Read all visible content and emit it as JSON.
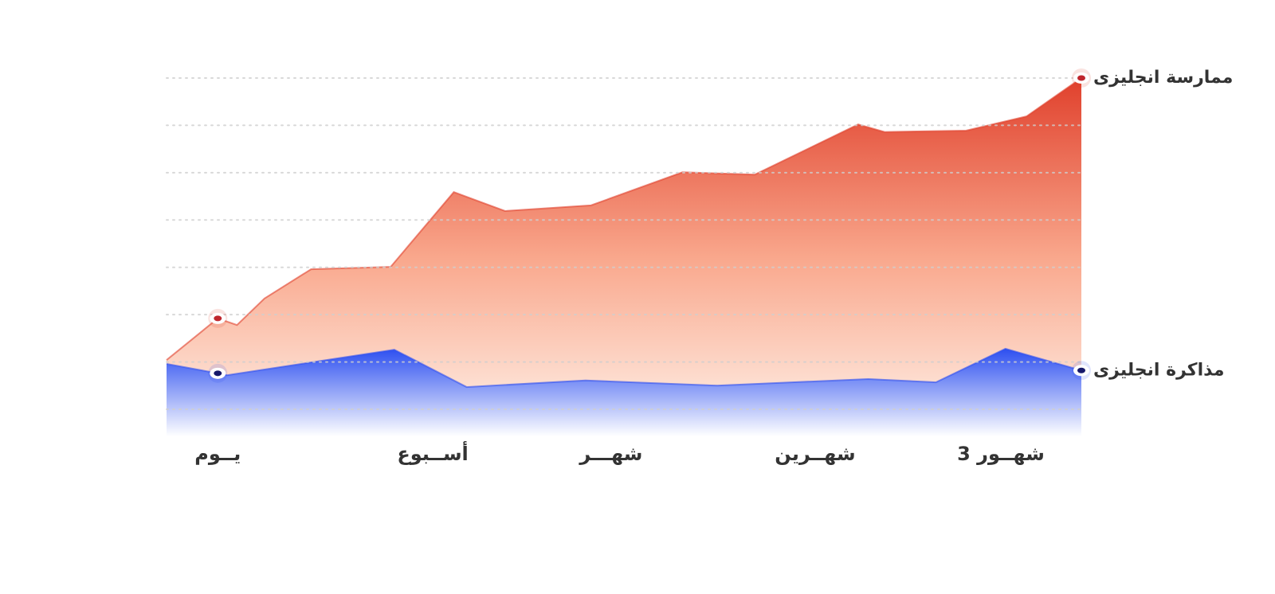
{
  "chart_data": {
    "type": "area",
    "xlim": [
      0,
      100
    ],
    "xticks": [
      {
        "value": 5.6,
        "label": "يــوم"
      },
      {
        "value": 29.1,
        "label": "أســبوع"
      },
      {
        "value": 48.6,
        "label": "شهـــر"
      },
      {
        "value": 70.9,
        "label": "شهــرين"
      },
      {
        "value": 91.2,
        "label": "3 شهــور"
      }
    ],
    "ylim": [
      0,
      7
    ],
    "yticks": [
      0,
      1,
      2,
      3,
      4,
      5,
      6,
      7
    ],
    "grid": true,
    "series": [
      {
        "name": "ممارسة انجليزى",
        "color": "#e0402c",
        "x": [
          0,
          5.6,
          7.7,
          10.7,
          15.8,
          24.5,
          31.4,
          37.0,
          46.4,
          56.4,
          64.3,
          75.6,
          78.5,
          87.4,
          94.0,
          100
        ],
        "values": [
          1.04,
          1.92,
          1.78,
          2.34,
          2.96,
          3.01,
          4.59,
          4.19,
          4.31,
          5.01,
          4.96,
          6.02,
          5.86,
          5.89,
          6.19,
          7.0
        ]
      },
      {
        "name": "مذاكرة انجليزى",
        "color": "#2d4ff0",
        "x": [
          0,
          5.6,
          6.6,
          24.9,
          32.8,
          45.8,
          60.2,
          76.7,
          84.1,
          91.7,
          100
        ],
        "values": [
          0.96,
          0.76,
          0.72,
          1.26,
          0.47,
          0.61,
          0.5,
          0.64,
          0.57,
          1.28,
          0.82
        ]
      }
    ]
  }
}
